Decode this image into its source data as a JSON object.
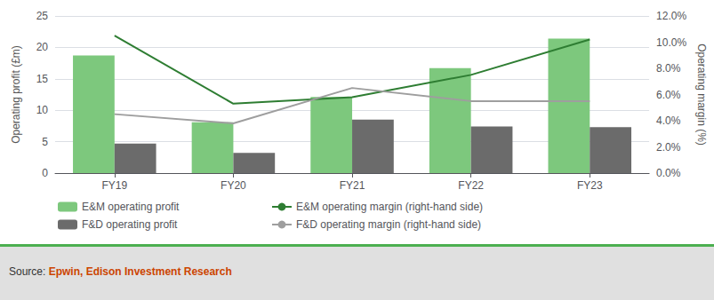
{
  "chart_data": {
    "type": "bar",
    "categories": [
      "FY19",
      "FY20",
      "FY21",
      "FY22",
      "FY23"
    ],
    "series": [
      {
        "name": "E&M operating profit",
        "type": "bar",
        "color": "#7DC87D",
        "values": [
          18.7,
          8.1,
          12.1,
          16.7,
          21.4
        ]
      },
      {
        "name": "F&D operating profit",
        "type": "bar",
        "color": "#6B6B6B",
        "values": [
          4.7,
          3.2,
          8.5,
          7.4,
          7.3
        ]
      },
      {
        "name": "E&M operating margin (right-hand side)",
        "type": "line",
        "axis": "y2",
        "color": "#2E7D32",
        "values": [
          10.5,
          5.3,
          5.8,
          7.5,
          10.2
        ]
      },
      {
        "name": "F&D operating margin (right-hand side)",
        "type": "line",
        "axis": "y2",
        "color": "#9E9E9E",
        "values": [
          4.5,
          3.8,
          6.5,
          5.5,
          5.5
        ]
      }
    ],
    "ylabel": "Operating profit (£m)",
    "y2label": "Operating margin (%)",
    "ylim": [
      0,
      25
    ],
    "yticks": [
      0,
      5,
      10,
      15,
      20,
      25
    ],
    "y2lim": [
      0,
      12
    ],
    "y2ticks": [
      {
        "value": 0,
        "label": "0.0%"
      },
      {
        "value": 2,
        "label": "2.0%"
      },
      {
        "value": 4,
        "label": "4.0%"
      },
      {
        "value": 6,
        "label": "6.0%"
      },
      {
        "value": 8,
        "label": "8.0%"
      },
      {
        "value": 10,
        "label": "10.0%"
      },
      {
        "value": 12,
        "label": "12.0%"
      }
    ],
    "grid": true,
    "legend": "bottom",
    "annotations": [
      "Source: Epwin, Edison Investment Research"
    ]
  }
}
